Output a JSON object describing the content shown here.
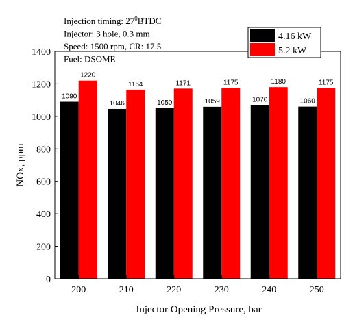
{
  "chart_data": {
    "type": "bar",
    "annotations": [
      [
        "Injection timing: 27",
        "0",
        "BTDC"
      ],
      [
        "Injector: 3 hole, 0.3 mm"
      ],
      [
        "Speed: 1500 rpm, CR: 17.5"
      ],
      [
        "Fuel: DSOME"
      ]
    ],
    "x_label": "Injector Opening Pressure, bar",
    "y_label": "NOx, ppm",
    "x": [
      200,
      210,
      220,
      230,
      240,
      250
    ],
    "xlim": [
      195,
      255
    ],
    "xticks": [
      200,
      210,
      220,
      230,
      240,
      250
    ],
    "ylim": [
      0,
      1400
    ],
    "yticks": [
      0,
      200,
      400,
      600,
      800,
      1000,
      1200,
      1400
    ],
    "legend": "top-right",
    "series": [
      {
        "name": "4.16 kW",
        "color": "#000000",
        "values": [
          1090,
          1046,
          1050,
          1059,
          1070,
          1060
        ]
      },
      {
        "name": "5.2 kW",
        "color": "#ff0000",
        "values": [
          1220,
          1164,
          1171,
          1175,
          1180,
          1175
        ]
      }
    ]
  }
}
